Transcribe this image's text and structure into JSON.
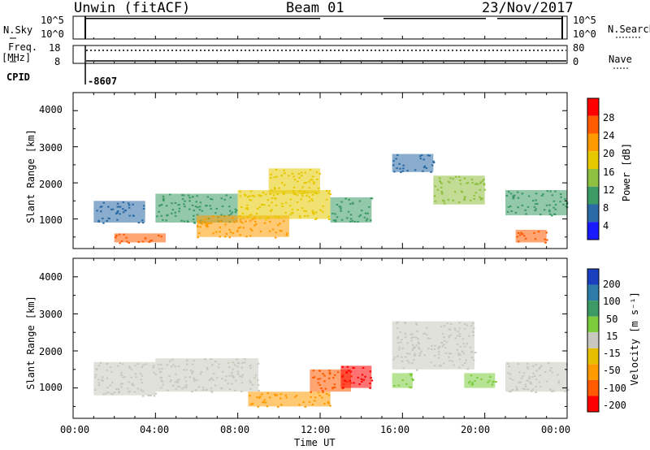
{
  "header": {
    "station": "Unwin (fitACF)",
    "beam": "Beam 01",
    "date": "23/Nov/2017"
  },
  "top_panels": {
    "nsky_label": "N.Sky",
    "nsky_ticks": [
      "10^5",
      "10^0"
    ],
    "nsearch_label": "N.Search",
    "nsearch_ticks": [
      "10^5",
      "10^0"
    ],
    "freq_label_1": "Freq.",
    "freq_label_2": "[MHz]",
    "freq_ticks": [
      "18",
      "8"
    ],
    "nave_label": "Nave",
    "nave_ticks": [
      "80",
      "0"
    ],
    "cpid_label": "CPID",
    "cpid_value": "-8607"
  },
  "power_colorbar": {
    "label": "Power [dB]",
    "ticks": [
      "28",
      "24",
      "20",
      "16",
      "12",
      "8",
      "4"
    ],
    "colors": [
      "#ff0000",
      "#ff5a00",
      "#ff9a00",
      "#e6c800",
      "#8fc040",
      "#3c9a64",
      "#2a6aa6",
      "#1a1aff"
    ]
  },
  "velocity_colorbar": {
    "label": "Velocity [m s⁻¹]",
    "ticks": [
      "200",
      "100",
      "50",
      "15",
      "-15",
      "-50",
      "-100",
      "-200"
    ],
    "colors": [
      "#1a40c0",
      "#2e7aa8",
      "#3c9a64",
      "#7ccc3c",
      "#c8c8c0",
      "#e6c000",
      "#ff9a00",
      "#ff5a00",
      "#ff0000"
    ]
  },
  "chart_data": [
    {
      "type": "heatmap",
      "title": "Power",
      "xlabel": "",
      "ylabel": "Slant Range [km]",
      "x_ticks": [
        "00:00",
        "04:00",
        "08:00",
        "12:00",
        "16:00",
        "20:00",
        "00:00"
      ],
      "y_ticks": [
        "4000",
        "3000",
        "2000",
        "1000"
      ],
      "ylim": [
        180,
        4500
      ],
      "xlim": [
        "00:00",
        "24:00"
      ],
      "color_label": "Power [dB]",
      "clim": [
        0,
        32
      ],
      "regions": [
        {
          "x": [
            1.0,
            3.5
          ],
          "y": [
            900,
            1500
          ],
          "value": 8
        },
        {
          "x": [
            2.0,
            4.5
          ],
          "y": [
            350,
            600
          ],
          "value": 27
        },
        {
          "x": [
            4.0,
            8.0
          ],
          "y": [
            900,
            1700
          ],
          "value": 12
        },
        {
          "x": [
            6.0,
            10.5
          ],
          "y": [
            500,
            1100
          ],
          "value": 23
        },
        {
          "x": [
            8.0,
            12.5
          ],
          "y": [
            1000,
            1800
          ],
          "value": 20
        },
        {
          "x": [
            9.5,
            12.0
          ],
          "y": [
            1700,
            2400
          ],
          "value": 17
        },
        {
          "x": [
            12.5,
            14.5
          ],
          "y": [
            900,
            1600
          ],
          "value": 12
        },
        {
          "x": [
            15.5,
            17.5
          ],
          "y": [
            2300,
            2800
          ],
          "value": 8
        },
        {
          "x": [
            17.5,
            20.0
          ],
          "y": [
            1400,
            2200
          ],
          "value": 13
        },
        {
          "x": [
            21.0,
            24.0
          ],
          "y": [
            1100,
            1800
          ],
          "value": 11
        },
        {
          "x": [
            21.5,
            23.0
          ],
          "y": [
            350,
            700
          ],
          "value": 26
        }
      ]
    },
    {
      "type": "heatmap",
      "title": "Velocity",
      "xlabel": "Time UT",
      "ylabel": "Slant Range [km]",
      "x_ticks": [
        "00:00",
        "04:00",
        "08:00",
        "12:00",
        "16:00",
        "20:00",
        "00:00"
      ],
      "y_ticks": [
        "4000",
        "3000",
        "2000",
        "1000"
      ],
      "ylim": [
        180,
        4500
      ],
      "xlim": [
        "00:00",
        "24:00"
      ],
      "color_label": "Velocity [m s⁻¹]",
      "clim": [
        -250,
        250
      ],
      "regions": [
        {
          "x": [
            1.0,
            4.0
          ],
          "y": [
            800,
            1700
          ],
          "value": 0
        },
        {
          "x": [
            4.0,
            9.0
          ],
          "y": [
            900,
            1800
          ],
          "value": 0
        },
        {
          "x": [
            8.5,
            12.5
          ],
          "y": [
            500,
            900
          ],
          "value": -80
        },
        {
          "x": [
            11.5,
            13.5
          ],
          "y": [
            900,
            1500
          ],
          "value": -140
        },
        {
          "x": [
            13.0,
            14.5
          ],
          "y": [
            1000,
            1600
          ],
          "value": -220
        },
        {
          "x": [
            15.5,
            16.5
          ],
          "y": [
            1000,
            1400
          ],
          "value": 45
        },
        {
          "x": [
            15.5,
            19.5
          ],
          "y": [
            1500,
            2800
          ],
          "value": 0
        },
        {
          "x": [
            19.0,
            20.5
          ],
          "y": [
            1000,
            1400
          ],
          "value": 45
        },
        {
          "x": [
            21.0,
            24.0
          ],
          "y": [
            900,
            1700
          ],
          "value": 0
        }
      ]
    }
  ]
}
